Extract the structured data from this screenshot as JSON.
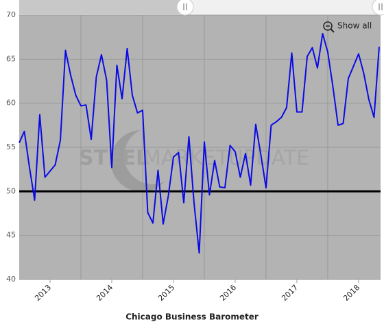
{
  "chart_data": {
    "type": "line",
    "x_axis_title": "Chicago Business Barometer",
    "button": "Show all",
    "watermark": [
      "STEEL",
      "MARKET",
      "UPDATE"
    ],
    "x": [
      2013,
      2013.083,
      2013.167,
      2013.25,
      2013.333,
      2013.417,
      2013.5,
      2013.583,
      2013.667,
      2013.75,
      2013.833,
      2013.917,
      2014,
      2014.083,
      2014.167,
      2014.25,
      2014.333,
      2014.417,
      2014.5,
      2014.583,
      2014.667,
      2014.75,
      2014.833,
      2014.917,
      2015,
      2015.083,
      2015.167,
      2015.25,
      2015.333,
      2015.417,
      2015.5,
      2015.583,
      2015.667,
      2015.75,
      2015.833,
      2015.917,
      2016,
      2016.083,
      2016.167,
      2016.25,
      2016.333,
      2016.417,
      2016.5,
      2016.583,
      2016.667,
      2016.75,
      2016.833,
      2016.917,
      2017,
      2017.083,
      2017.167,
      2017.25,
      2017.333,
      2017.417,
      2017.5,
      2017.583,
      2017.667,
      2017.75,
      2017.833,
      2017.917,
      2018,
      2018.083,
      2018.167,
      2018.25,
      2018.333,
      2018.417,
      2018.5,
      2018.583,
      2018.667,
      2018.75,
      2018.833
    ],
    "series": [
      {
        "name": "Chicago Business Barometer",
        "color": "#0a0ae6",
        "values": [
          55.5,
          56.8,
          52.7,
          49.0,
          58.7,
          51.6,
          52.3,
          53.0,
          55.8,
          66.0,
          63.2,
          60.9,
          59.7,
          59.8,
          55.9,
          63.0,
          65.5,
          62.6,
          52.7,
          64.3,
          60.5,
          66.2,
          60.9,
          58.9,
          59.2,
          47.6,
          46.4,
          52.4,
          46.3,
          49.5,
          53.9,
          54.4,
          48.7,
          56.2,
          48.7,
          43.0,
          55.6,
          49.6,
          53.5,
          50.5,
          50.4,
          55.2,
          54.5,
          51.6,
          54.3,
          50.7,
          57.6,
          54.1,
          50.4,
          57.5,
          57.9,
          58.4,
          59.5,
          65.7,
          59.0,
          59.0,
          65.3,
          66.3,
          64.0,
          67.9,
          65.8,
          61.9,
          57.5,
          57.7,
          62.8,
          64.2,
          65.6,
          63.4,
          60.4,
          58.4,
          66.4
        ]
      }
    ],
    "xlim": [
      2013,
      2018.856
    ],
    "xticks": [
      {
        "value": 2013.5,
        "label": "2013"
      },
      {
        "value": 2014.5,
        "label": "2014"
      },
      {
        "value": 2015.5,
        "label": "2015"
      },
      {
        "value": 2016.5,
        "label": "2016"
      },
      {
        "value": 2017.5,
        "label": "2017"
      },
      {
        "value": 2018.5,
        "label": "2018"
      }
    ],
    "xgrid": [
      2014,
      2015,
      2016,
      2017,
      2018
    ],
    "ylim": [
      40,
      70
    ],
    "yticks": [
      40,
      45,
      50,
      55,
      60,
      65,
      70
    ],
    "plot_line": 50,
    "grid": true
  }
}
